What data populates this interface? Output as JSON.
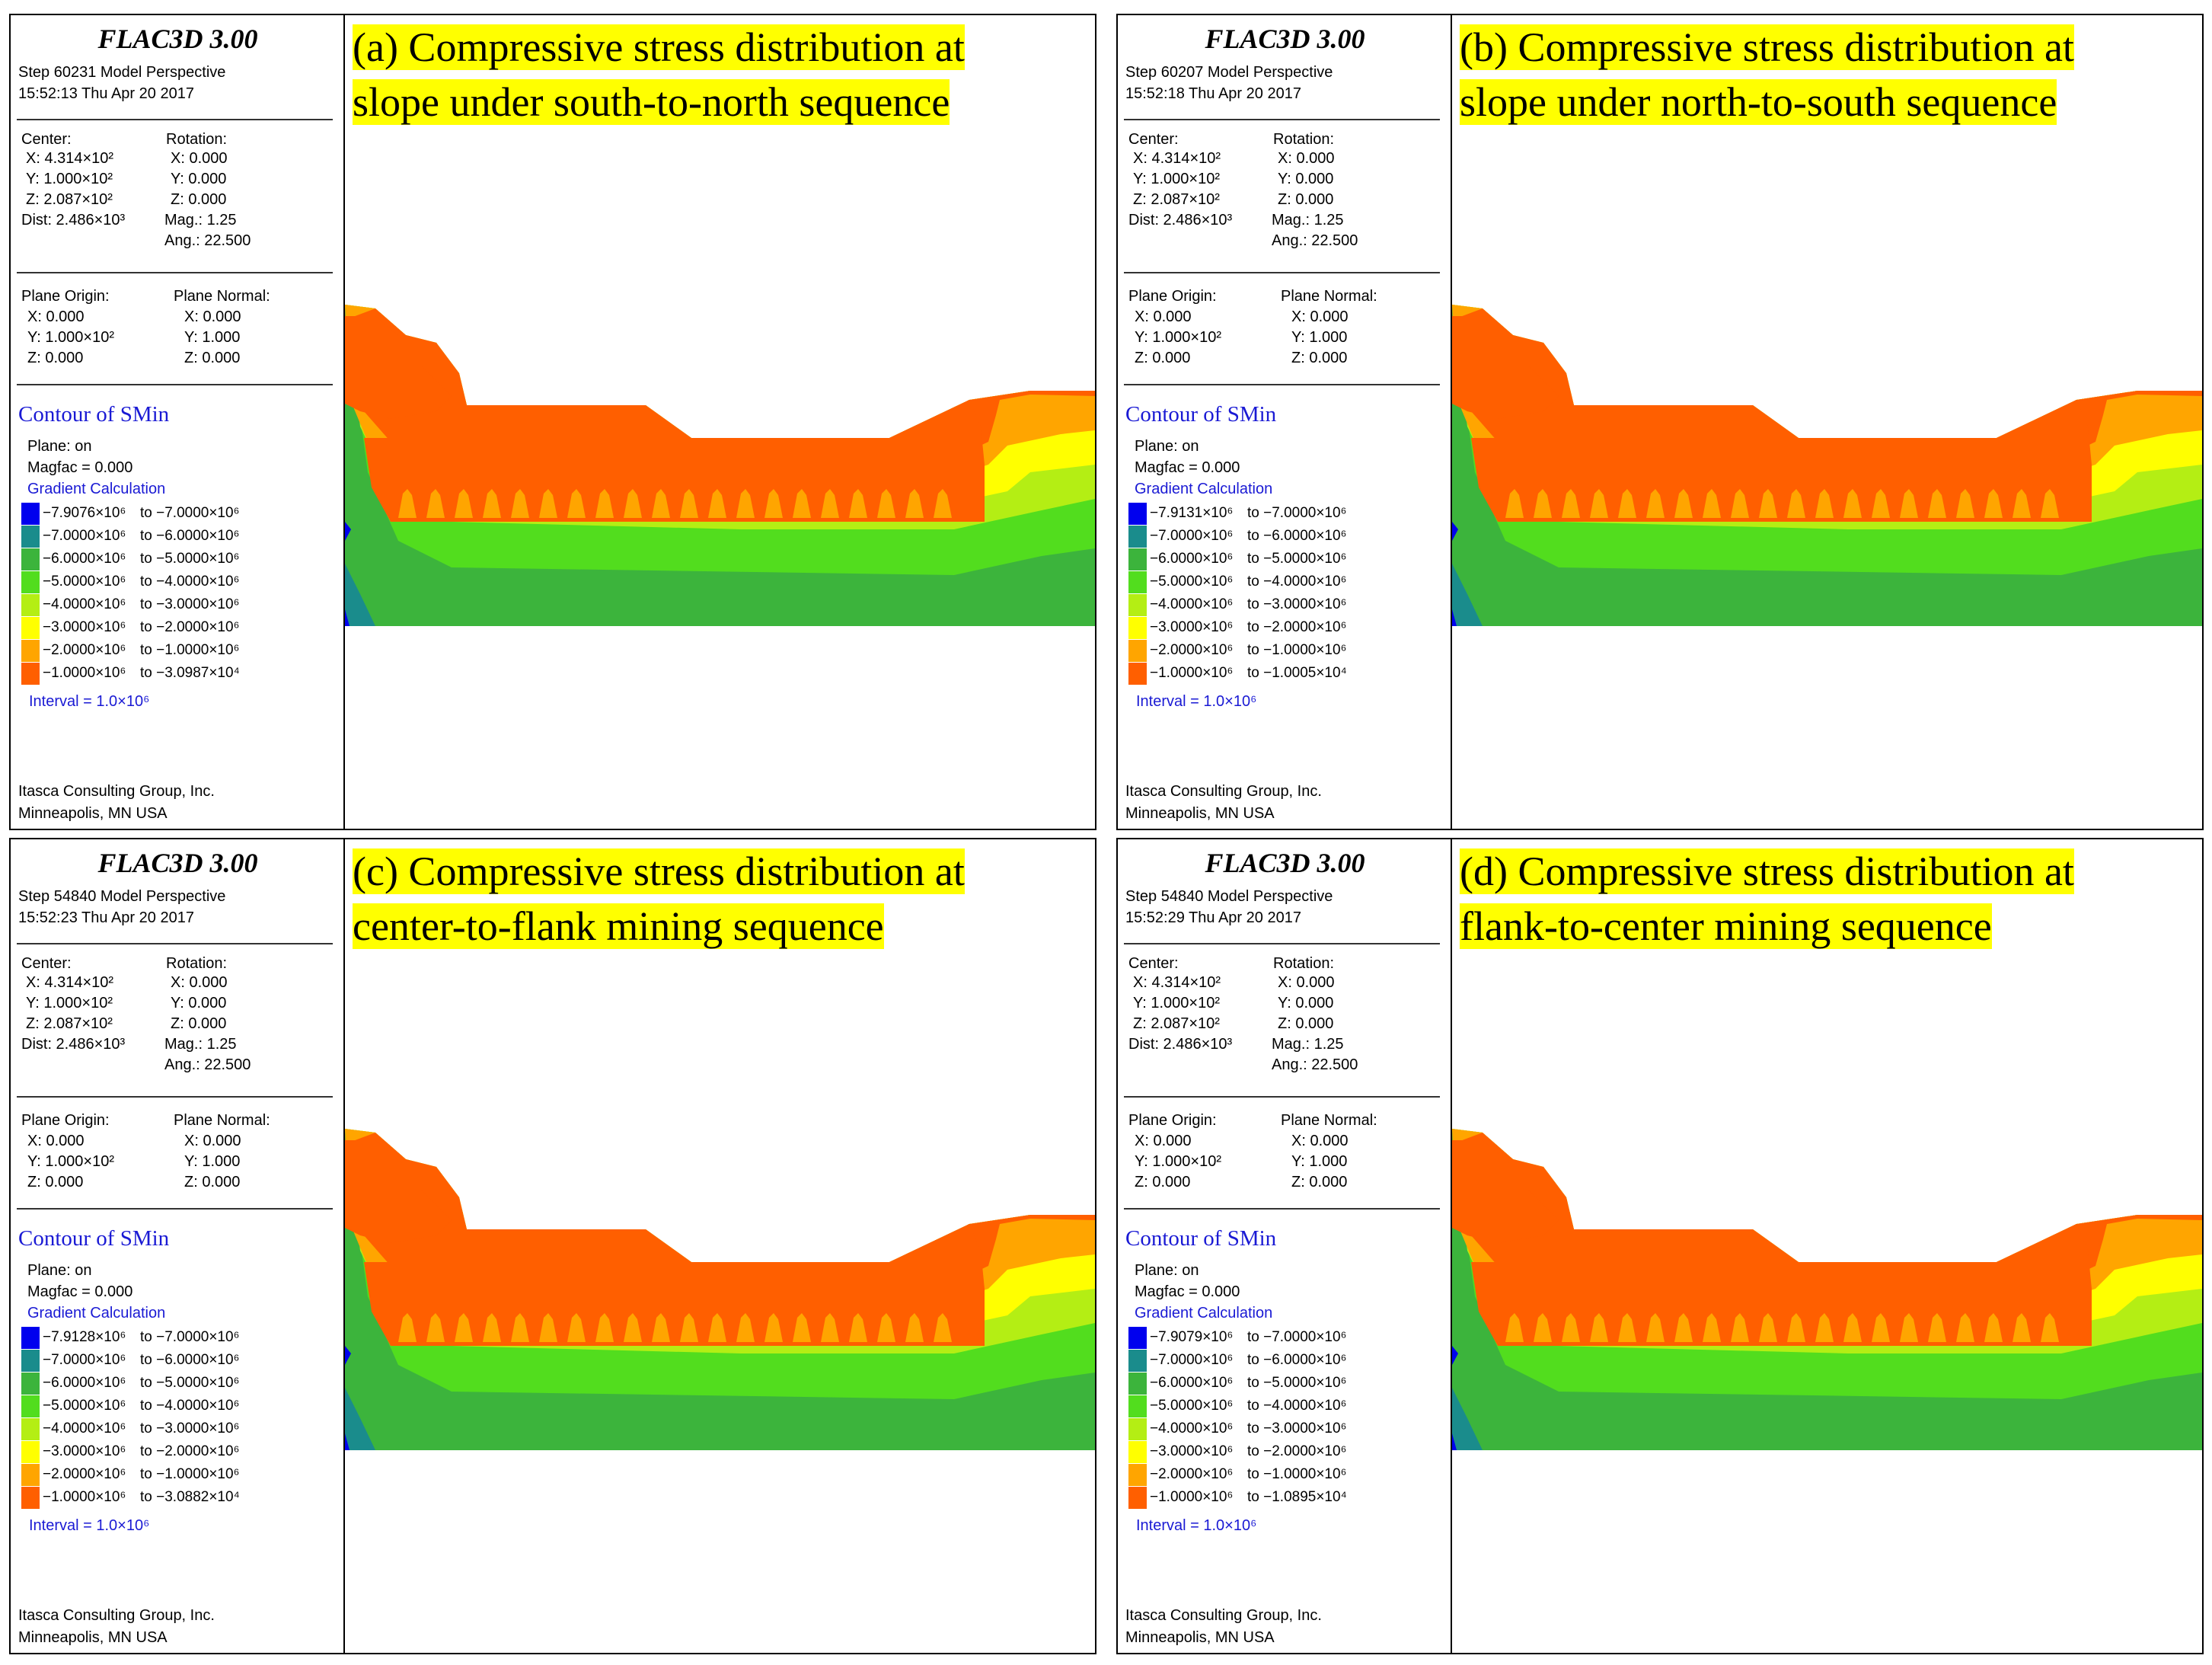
{
  "app_title": "FLAC3D 3.00",
  "footer": {
    "company": "Itasca Consulting Group, Inc.",
    "location": "Minneapolis, MN  USA"
  },
  "common": {
    "center_label": "Center:",
    "center_x": "X: 4.314×10²",
    "center_y": "Y: 1.000×10²",
    "center_z": "Z: 2.087×10²",
    "dist": "Dist: 2.486×10³",
    "rotation_label": "Rotation:",
    "rot_x": "X:  0.000",
    "rot_y": "Y:  0.000",
    "rot_z": "Z:  0.000",
    "mag": "Mag.:    1.25",
    "ang": "Ang.:  22.500",
    "plane_origin_label": "Plane Origin:",
    "origin_x": "X: 0.000",
    "origin_y": "Y: 1.000×10²",
    "origin_z": "Z: 0.000",
    "plane_normal_label": "Plane Normal:",
    "normal_x": "X: 0.000",
    "normal_y": "Y: 1.000",
    "normal_z": "Z: 0.000",
    "contour_title": "Contour of SMin",
    "plane": "Plane: on",
    "magfac": "Magfac =  0.000",
    "gradient": "Gradient Calculation",
    "interval": "Interval =  1.0×10⁶",
    "legend_colors": [
      "#0000ee",
      "#1a8c8c",
      "#3cb43c",
      "#52dd1e",
      "#b4ee14",
      "#ffff00",
      "#ffa500",
      "#ff5f00"
    ],
    "legend_from": [
      "−7.0000×10⁶",
      "−6.0000×10⁶",
      "−5.0000×10⁶",
      "−4.0000×10⁶",
      "−3.0000×10⁶",
      "−2.0000×10⁶",
      "−1.0000×10⁶"
    ],
    "legend_to": [
      "to −7.0000×10⁶",
      "to −6.0000×10⁶",
      "to −5.0000×10⁶",
      "to −4.0000×10⁶",
      "to −3.0000×10⁶",
      "to −2.0000×10⁶",
      "to −1.0000×10⁶"
    ]
  },
  "panels": [
    {
      "step": "Step 60231  Model Perspective",
      "datetime": "15:52:13 Thu Apr 20 2017",
      "legend_min": "−7.9076×10⁶",
      "legend_last_to": "to −3.0987×10⁴",
      "caption_line1": "(a) Compressive stress distribution at",
      "caption_line2": "slope under south-to-north sequence"
    },
    {
      "step": "Step 60207  Model Perspective",
      "datetime": "15:52:18 Thu Apr 20 2017",
      "legend_min": "−7.9131×10⁶",
      "legend_last_to": "to −1.0005×10⁴",
      "caption_line1": "(b) Compressive stress distribution at",
      "caption_line2": "slope under north-to-south sequence"
    },
    {
      "step": "Step 54840  Model Perspective",
      "datetime": "15:52:23 Thu Apr 20 2017",
      "legend_min": "−7.9128×10⁶",
      "legend_last_to": "to −3.0882×10⁴",
      "caption_line1": "(c) Compressive stress distribution at",
      "caption_line2": "center-to-flank mining sequence"
    },
    {
      "step": "Step 54840  Model Perspective",
      "datetime": "15:52:29 Thu Apr 20 2017",
      "legend_min": "−7.9079×10⁶",
      "legend_last_to": "to −1.0895×10⁴",
      "caption_line1": "(d) Compressive stress distribution at",
      "caption_line2": "flank-to-center mining sequence"
    }
  ]
}
